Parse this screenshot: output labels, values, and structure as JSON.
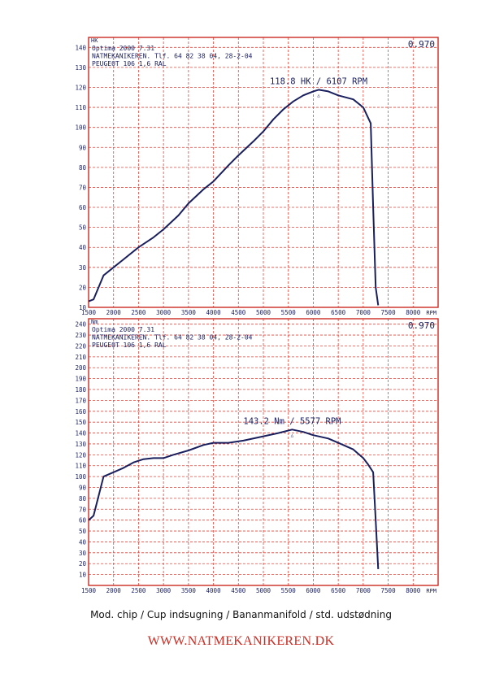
{
  "footer": {
    "subtitle": "Mod. chip / Cup indsugning / Bananmanifold /  std. udstødning",
    "website": "WWW.NATMEKANIKEREN.DK"
  },
  "colors": {
    "grid": "#e8433a",
    "curve": "#1a1f5e",
    "text": "#1a1f5e",
    "frame": "#cc2b22"
  },
  "chart_data": [
    {
      "type": "line",
      "yunit": "HK",
      "correction": "0.970",
      "header_lines": [
        "Optima 2000 7.31",
        "NATMEKANIKEREN. Tlf. 64 82 38 04, 28-2-04",
        "PEUGEOT 106 1,6 RAL"
      ],
      "xunit": "RPM",
      "xlim": [
        1500,
        8500
      ],
      "ylim": [
        10,
        145
      ],
      "x_ticks": [
        1500,
        2000,
        2500,
        3000,
        3500,
        4000,
        4500,
        5000,
        5500,
        6000,
        6500,
        7000,
        7500,
        8000
      ],
      "y_ticks": [
        140,
        130,
        120,
        110,
        100,
        90,
        80,
        70,
        60,
        50,
        40,
        30,
        20,
        10
      ],
      "grid": true,
      "peak": {
        "label": "118.8 HK / 6107 RPM",
        "x": 6107,
        "y": 118.8
      },
      "series": [
        {
          "x": [
            1500,
            1600,
            1800,
            2000,
            2200,
            2500,
            2800,
            3000,
            3300,
            3500,
            3800,
            4000,
            4300,
            4500,
            4800,
            5000,
            5200,
            5400,
            5600,
            5800,
            6000,
            6107,
            6300,
            6500,
            6800,
            7000,
            7150,
            7200,
            7250,
            7300
          ],
          "y": [
            13,
            14,
            26,
            30,
            34,
            40,
            45,
            49,
            56,
            62,
            69,
            73,
            81,
            86,
            93,
            98,
            104,
            109,
            113,
            116,
            118,
            118.8,
            118,
            116,
            114,
            110,
            102,
            60,
            20,
            11
          ]
        }
      ]
    },
    {
      "type": "line",
      "yunit": "Nm",
      "correction": "0.970",
      "header_lines": [
        "Optima 2000 7.31",
        "NATMEKANIKEREN. Tlf. 64 82 38 04, 28-2-04",
        "PEUGEOT 106 1,6 RAL"
      ],
      "xunit": "RPM",
      "xlim": [
        1500,
        8500
      ],
      "ylim": [
        0,
        245
      ],
      "x_ticks": [
        1500,
        2000,
        2500,
        3000,
        3500,
        4000,
        4500,
        5000,
        5500,
        6000,
        6500,
        7000,
        7500,
        8000
      ],
      "y_ticks": [
        240,
        230,
        220,
        210,
        200,
        190,
        180,
        170,
        160,
        150,
        140,
        130,
        120,
        110,
        100,
        90,
        80,
        70,
        60,
        50,
        40,
        30,
        20,
        10
      ],
      "grid": true,
      "peak": {
        "label": "143.2 Nm / 5577 RPM",
        "x": 5577,
        "y": 143.2
      },
      "series": [
        {
          "x": [
            1500,
            1600,
            1800,
            2000,
            2200,
            2400,
            2600,
            2800,
            3000,
            3200,
            3500,
            3800,
            4000,
            4300,
            4600,
            5000,
            5300,
            5577,
            5800,
            6000,
            6300,
            6500,
            6800,
            7000,
            7100,
            7200,
            7250,
            7300
          ],
          "y": [
            60,
            64,
            100,
            104,
            108,
            113,
            116,
            117,
            117,
            120,
            124,
            129,
            131,
            131,
            133,
            137,
            140,
            143.2,
            141,
            138,
            135,
            131,
            125,
            117,
            111,
            104,
            60,
            15
          ]
        }
      ]
    }
  ]
}
